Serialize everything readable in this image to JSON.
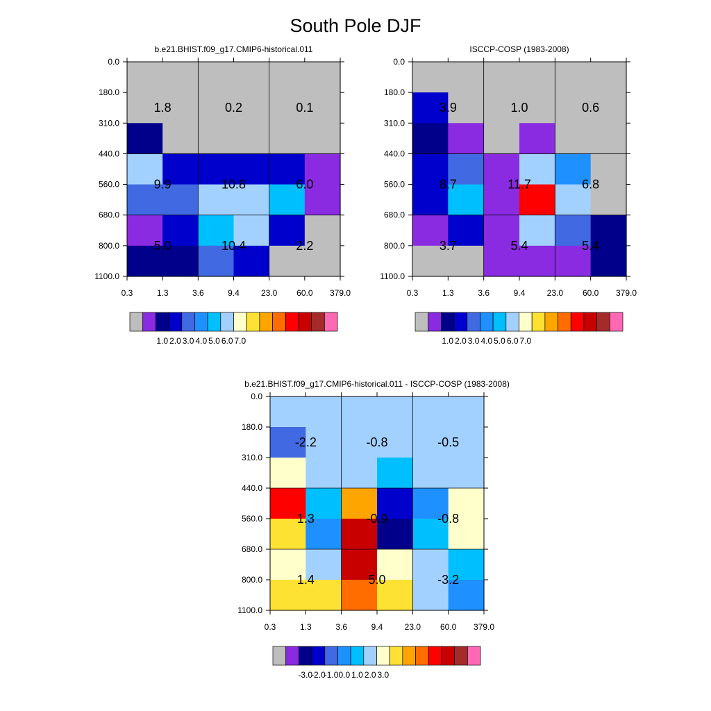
{
  "title": "South Pole DJF",
  "colors": {
    "missing": "#bebebe",
    "palette": [
      "#bebebe",
      "#8a2be2",
      "#00008b",
      "#0000cd",
      "#4169e1",
      "#1e90ff",
      "#00bfff",
      "#a3d1ff",
      "#ffffcc",
      "#fde233",
      "#ffa500",
      "#ff6c00",
      "#ff0000",
      "#c90000",
      "#a52a2a",
      "#ff69b4"
    ]
  },
  "chart_data": [
    {
      "type": "heatmap",
      "title": "b.e21.BHIST.f09_g17.CMIP6-historical.011",
      "x_bin_edges": [
        0.3,
        1.3,
        3.6,
        9.4,
        23.0,
        60.0,
        379.0
      ],
      "x_tick_labels": [
        "0.3",
        "1.3",
        "3.6",
        "9.4",
        "23.0",
        "60.0",
        "379.0"
      ],
      "y_bin_edges": [
        0.0,
        180.0,
        310.0,
        440.0,
        560.0,
        680.0,
        800.0,
        1100.0
      ],
      "y_tick_labels": [
        "0.0",
        "180.0",
        "310.0",
        "440.0",
        "560.0",
        "680.0",
        "800.0",
        "1100.0"
      ],
      "cell_colors": [
        [
          0,
          0,
          0,
          0,
          0,
          0
        ],
        [
          0,
          0,
          0,
          0,
          0,
          0
        ],
        [
          2,
          0,
          0,
          0,
          0,
          0
        ],
        [
          7,
          3,
          3,
          3,
          3,
          1
        ],
        [
          4,
          4,
          7,
          7,
          6,
          1
        ],
        [
          1,
          3,
          6,
          7,
          3,
          0
        ],
        [
          2,
          2,
          4,
          3,
          0,
          0
        ]
      ],
      "group_totals": [
        {
          "col": 1,
          "row": 1.5,
          "label": "1.8"
        },
        {
          "col": 3,
          "row": 1.5,
          "label": "0.2"
        },
        {
          "col": 5,
          "row": 1.5,
          "label": "0.1"
        },
        {
          "col": 1,
          "row": 4.0,
          "label": "9.9"
        },
        {
          "col": 3,
          "row": 4.0,
          "label": "10.8"
        },
        {
          "col": 5,
          "row": 4.0,
          "label": "6.0"
        },
        {
          "col": 1,
          "row": 6.0,
          "label": "5.0"
        },
        {
          "col": 3,
          "row": 6.0,
          "label": "10.4"
        },
        {
          "col": 5,
          "row": 6.0,
          "label": "2.2"
        }
      ],
      "colorbar": {
        "labels": [
          "1.0",
          "2.0",
          "3.0",
          "4.0",
          "5.0",
          "6.0",
          "7.0"
        ]
      }
    },
    {
      "type": "heatmap",
      "title": "ISCCP-COSP (1983-2008)",
      "x_bin_edges": [
        0.3,
        1.3,
        3.6,
        9.4,
        23.0,
        60.0,
        379.0
      ],
      "x_tick_labels": [
        "0.3",
        "1.3",
        "3.6",
        "9.4",
        "23.0",
        "60.0",
        "379.0"
      ],
      "y_bin_edges": [
        0.0,
        180.0,
        310.0,
        440.0,
        560.0,
        680.0,
        800.0,
        1100.0
      ],
      "y_tick_labels": [
        "0.0",
        "180.0",
        "310.0",
        "440.0",
        "560.0",
        "680.0",
        "800.0",
        "1100.0"
      ],
      "cell_colors": [
        [
          0,
          0,
          0,
          0,
          0,
          0
        ],
        [
          3,
          0,
          0,
          0,
          0,
          0
        ],
        [
          2,
          1,
          0,
          1,
          0,
          0
        ],
        [
          3,
          4,
          1,
          7,
          5,
          0
        ],
        [
          3,
          6,
          1,
          12,
          7,
          0
        ],
        [
          1,
          3,
          1,
          7,
          4,
          2
        ],
        [
          0,
          0,
          1,
          1,
          1,
          2
        ]
      ],
      "group_totals": [
        {
          "col": 1,
          "row": 1.5,
          "label": "3.9"
        },
        {
          "col": 3,
          "row": 1.5,
          "label": "1.0"
        },
        {
          "col": 5,
          "row": 1.5,
          "label": "0.6"
        },
        {
          "col": 1,
          "row": 4.0,
          "label": "8.7"
        },
        {
          "col": 3,
          "row": 4.0,
          "label": "11.7"
        },
        {
          "col": 5,
          "row": 4.0,
          "label": "6.8"
        },
        {
          "col": 1,
          "row": 6.0,
          "label": "3.7"
        },
        {
          "col": 3,
          "row": 6.0,
          "label": "5.4"
        },
        {
          "col": 5,
          "row": 6.0,
          "label": "5.4"
        }
      ],
      "colorbar": {
        "labels": [
          "1.0",
          "2.0",
          "3.0",
          "4.0",
          "5.0",
          "6.0",
          "7.0"
        ]
      }
    },
    {
      "type": "heatmap",
      "title": "b.e21.BHIST.f09_g17.CMIP6-historical.011 - ISCCP-COSP (1983-2008)",
      "x_bin_edges": [
        0.3,
        1.3,
        3.6,
        9.4,
        23.0,
        60.0,
        379.0
      ],
      "x_tick_labels": [
        "0.3",
        "1.3",
        "3.6",
        "9.4",
        "23.0",
        "60.0",
        "379.0"
      ],
      "y_bin_edges": [
        0.0,
        180.0,
        310.0,
        440.0,
        560.0,
        680.0,
        800.0,
        1100.0
      ],
      "y_tick_labels": [
        "0.0",
        "180.0",
        "310.0",
        "440.0",
        "560.0",
        "680.0",
        "800.0",
        "1100.0"
      ],
      "cell_colors": [
        [
          7,
          7,
          7,
          7,
          7,
          7
        ],
        [
          4,
          7,
          7,
          7,
          7,
          7
        ],
        [
          8,
          7,
          7,
          6,
          7,
          7
        ],
        [
          12,
          6,
          10,
          3,
          5,
          8
        ],
        [
          9,
          5,
          13,
          2,
          6,
          8
        ],
        [
          8,
          7,
          13,
          8,
          7,
          6
        ],
        [
          9,
          9,
          11,
          9,
          7,
          5
        ]
      ],
      "group_totals": [
        {
          "col": 1,
          "row": 1.5,
          "label": "-2.2"
        },
        {
          "col": 3,
          "row": 1.5,
          "label": "-0.8"
        },
        {
          "col": 5,
          "row": 1.5,
          "label": "-0.5"
        },
        {
          "col": 1,
          "row": 4.0,
          "label": "1.3"
        },
        {
          "col": 3,
          "row": 4.0,
          "label": "-0.9"
        },
        {
          "col": 5,
          "row": 4.0,
          "label": "-0.8"
        },
        {
          "col": 1,
          "row": 6.0,
          "label": "1.4"
        },
        {
          "col": 3,
          "row": 6.0,
          "label": "5.0"
        },
        {
          "col": 5,
          "row": 6.0,
          "label": "-3.2"
        }
      ],
      "colorbar": {
        "labels": [
          "-3.0",
          "-2.0",
          "-1.0",
          "0.0",
          "1.0",
          "2.0",
          "3.0"
        ]
      }
    }
  ]
}
